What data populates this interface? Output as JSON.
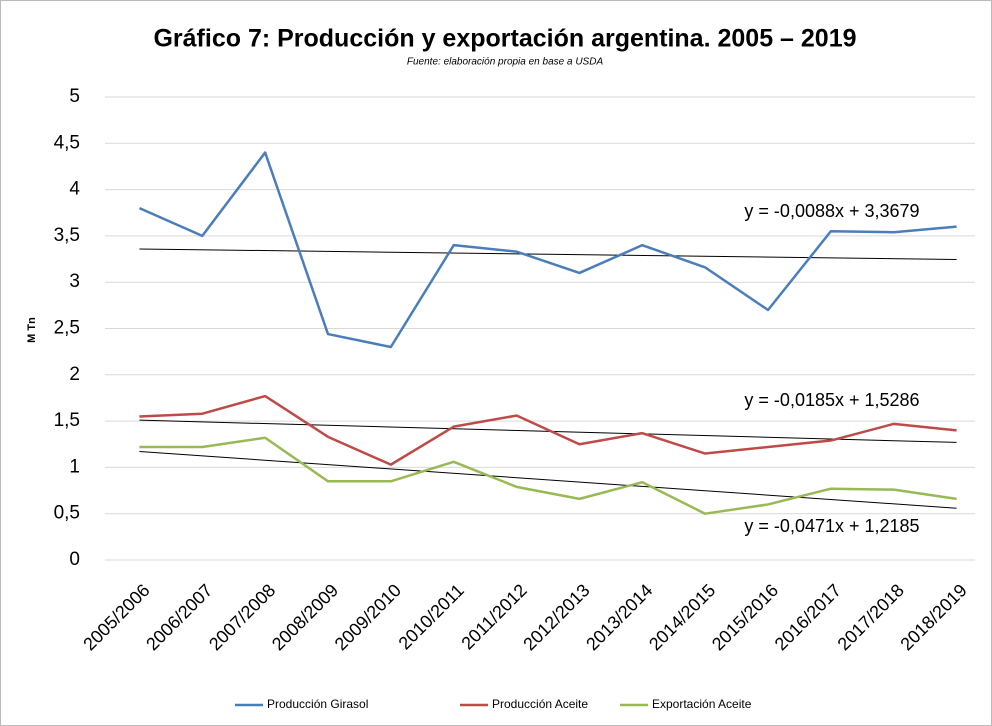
{
  "chart_data": {
    "type": "line",
    "title": "Gráfico 7: Producción y exportación argentina. 2005 – 2019",
    "subtitle": "Fuente: elaboración propia en base a USDA",
    "y_label": "M Tn",
    "categories": [
      "2005/2006",
      "2006/2007",
      "2007/2008",
      "2008/2009",
      "2009/2010",
      "2010/2011",
      "2011/2012",
      "2012/2013",
      "2013/2014",
      "2014/2015",
      "2015/2016",
      "2016/2017",
      "2017/2018",
      "2018/2019"
    ],
    "series": [
      {
        "name": "Producción Girasol",
        "color": "#4a7ebb",
        "values": [
          3.8,
          3.5,
          4.4,
          2.44,
          2.3,
          3.4,
          3.33,
          3.1,
          3.4,
          3.16,
          2.7,
          3.55,
          3.54,
          3.6
        ]
      },
      {
        "name": "Producción Aceite",
        "color": "#be4b48",
        "values": [
          1.55,
          1.58,
          1.77,
          1.33,
          1.03,
          1.44,
          1.56,
          1.25,
          1.37,
          1.15,
          1.22,
          1.29,
          1.47,
          1.4
        ]
      },
      {
        "name": "Exportación Aceite",
        "color": "#98b954",
        "values": [
          1.22,
          1.22,
          1.32,
          0.85,
          0.85,
          1.06,
          0.79,
          0.66,
          0.84,
          0.5,
          0.6,
          0.77,
          0.76,
          0.66
        ]
      }
    ],
    "trendlines": [
      {
        "label": "y = -0,0088x + 3,3679",
        "slope": -0.0088,
        "intercept": 3.3679
      },
      {
        "label": "y = -0,0185x + 1,5286",
        "slope": -0.0185,
        "intercept": 1.5286
      },
      {
        "label": "y = -0,0471x + 1,2185",
        "slope": -0.0471,
        "intercept": 1.2185
      }
    ],
    "ylim": [
      0,
      5
    ],
    "yticks": [
      0,
      {
        "value": 0.5,
        "label": "0,5"
      },
      1,
      {
        "value": 1.5,
        "label": "1,5"
      },
      2,
      {
        "value": 2.5,
        "label": "2,5"
      },
      3,
      {
        "value": 3.5,
        "label": "3,5"
      },
      4,
      {
        "value": 4.5,
        "label": "4,5"
      },
      5
    ],
    "grid": true,
    "legend": "bottom"
  }
}
